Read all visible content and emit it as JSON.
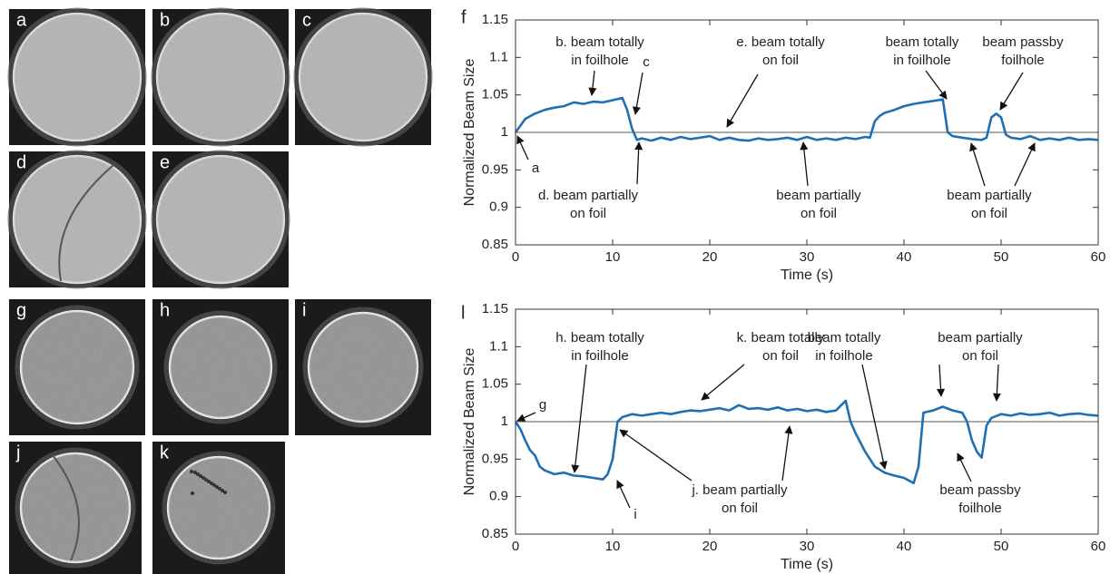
{
  "panels": [
    "a",
    "b",
    "c",
    "d",
    "e",
    "g",
    "h",
    "i",
    "j",
    "k"
  ],
  "chart_data": [
    {
      "type": "line",
      "panel_label": "f",
      "xlabel": "Time (s)",
      "ylabel": "Normalized Beam Size",
      "x": [
        0,
        1,
        2,
        3,
        4,
        5,
        6,
        7,
        8,
        9,
        10,
        11,
        11.5,
        12,
        12.5,
        13,
        14,
        15,
        16,
        17,
        18,
        19,
        20,
        21,
        22,
        23,
        24,
        25,
        26,
        27,
        28,
        29,
        30,
        31,
        32,
        33,
        34,
        35,
        36,
        36.5,
        37,
        37.5,
        38,
        39,
        40,
        41,
        42,
        43,
        44,
        44.5,
        45,
        46,
        47,
        48,
        48.5,
        49,
        49.5,
        50,
        50.5,
        51,
        52,
        53,
        54,
        55,
        56,
        57,
        58,
        59,
        60
      ],
      "values": [
        1.0,
        1.018,
        1.025,
        1.03,
        1.033,
        1.035,
        1.04,
        1.038,
        1.041,
        1.04,
        1.043,
        1.046,
        1.03,
        1.005,
        0.99,
        0.992,
        0.989,
        0.993,
        0.99,
        0.994,
        0.991,
        0.993,
        0.995,
        0.99,
        0.993,
        0.99,
        0.989,
        0.992,
        0.99,
        0.991,
        0.993,
        0.99,
        0.994,
        0.99,
        0.992,
        0.99,
        0.993,
        0.991,
        0.994,
        0.993,
        1.015,
        1.022,
        1.026,
        1.03,
        1.035,
        1.038,
        1.04,
        1.042,
        1.044,
        1.0,
        0.995,
        0.993,
        0.991,
        0.99,
        0.993,
        1.02,
        1.025,
        1.02,
        0.997,
        0.993,
        0.991,
        0.995,
        0.99,
        0.992,
        0.99,
        0.993,
        0.99,
        0.991,
        0.99
      ],
      "color": "#1f6fb5",
      "reference_line": 1,
      "xlim": [
        0,
        60
      ],
      "xticks": [
        0,
        10,
        20,
        30,
        40,
        50,
        60
      ],
      "ylim": [
        0.85,
        1.15
      ],
      "yticks": [
        0.85,
        0.9,
        0.95,
        1,
        1.05,
        1.1,
        1.15
      ],
      "annotations": [
        [
          "a"
        ],
        [
          "b. beam totally",
          "in foilhole"
        ],
        [
          "c"
        ],
        [
          "d. beam partially",
          "on foil"
        ],
        [
          "e. beam totally",
          "on foil"
        ],
        [
          "beam partially",
          "on foil"
        ],
        [
          "beam totally",
          "in foilhole"
        ],
        [
          "beam passby",
          "foilhole"
        ],
        [
          "beam partially",
          "on foil"
        ]
      ]
    },
    {
      "type": "line",
      "panel_label": "l",
      "xlabel": "Time (s)",
      "ylabel": "Normalized Beam Size",
      "x": [
        0,
        0.5,
        1,
        1.5,
        2,
        2.5,
        3,
        4,
        5,
        6,
        7,
        8,
        9,
        9.5,
        10,
        10.5,
        11,
        12,
        13,
        14,
        15,
        16,
        17,
        18,
        19,
        20,
        21,
        22,
        23,
        24,
        25,
        26,
        27,
        28,
        29,
        30,
        31,
        32,
        33,
        34,
        34.5,
        35,
        36,
        37,
        38,
        39,
        40,
        41,
        41.5,
        42,
        43,
        44,
        45,
        46,
        46.5,
        47,
        47.5,
        48,
        48.5,
        49,
        50,
        51,
        52,
        53,
        54,
        55,
        56,
        57,
        58,
        59,
        60
      ],
      "values": [
        1.0,
        0.99,
        0.975,
        0.962,
        0.955,
        0.94,
        0.935,
        0.93,
        0.932,
        0.928,
        0.927,
        0.925,
        0.923,
        0.93,
        0.95,
        1.0,
        1.006,
        1.01,
        1.008,
        1.01,
        1.012,
        1.01,
        1.013,
        1.015,
        1.014,
        1.016,
        1.018,
        1.015,
        1.022,
        1.017,
        1.018,
        1.016,
        1.019,
        1.015,
        1.017,
        1.014,
        1.016,
        1.013,
        1.015,
        1.028,
        1.0,
        0.985,
        0.96,
        0.94,
        0.932,
        0.928,
        0.925,
        0.918,
        0.94,
        1.012,
        1.015,
        1.02,
        1.015,
        1.012,
        1.0,
        0.975,
        0.96,
        0.952,
        0.995,
        1.005,
        1.01,
        1.008,
        1.011,
        1.009,
        1.01,
        1.012,
        1.008,
        1.01,
        1.011,
        1.009,
        1.008
      ],
      "color": "#1f6fb5",
      "reference_line": 1,
      "xlim": [
        0,
        60
      ],
      "xticks": [
        0,
        10,
        20,
        30,
        40,
        50,
        60
      ],
      "ylim": [
        0.85,
        1.15
      ],
      "yticks": [
        0.85,
        0.9,
        0.95,
        1,
        1.05,
        1.1,
        1.15
      ],
      "annotations": [
        [
          "g"
        ],
        [
          "h. beam totally",
          "in foilhole"
        ],
        [
          "i"
        ],
        [
          "j. beam partially",
          "on foil"
        ],
        [
          "k. beam totally",
          "on foil"
        ],
        [
          "beam totally",
          "in foilhole"
        ],
        [
          "beam partially",
          "on foil"
        ],
        [
          "beam passby",
          "foilhole"
        ]
      ]
    }
  ]
}
